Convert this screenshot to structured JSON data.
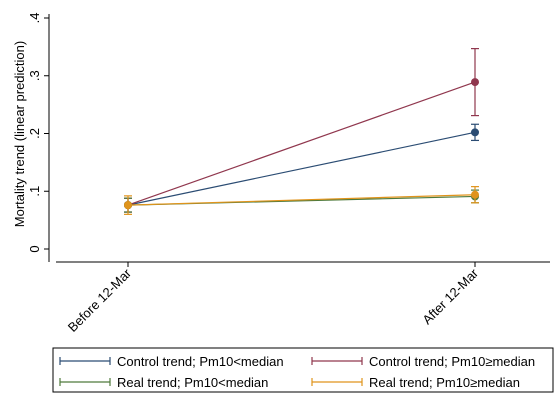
{
  "chart_data": {
    "type": "line",
    "categories": [
      "Before 12-Mar",
      "After 12-Mar"
    ],
    "ylabel": "Mortality trend (linear prediction)",
    "ylim": [
      0,
      0.4
    ],
    "yticks": [
      0,
      0.1,
      0.2,
      0.3,
      0.4
    ],
    "ytick_labels": [
      "0",
      ".1",
      ".2",
      ".3",
      ".4"
    ],
    "grid": false,
    "legend_position": "bottom",
    "series": [
      {
        "name": "Control trend; Pm10<median",
        "color": "#2b4c73",
        "values": [
          0.076,
          0.202
        ],
        "ci_low": [
          0.064,
          0.188
        ],
        "ci_high": [
          0.088,
          0.216
        ]
      },
      {
        "name": "Control trend; Pm10≥median",
        "color": "#90374e",
        "values": [
          0.076,
          0.289
        ],
        "ci_low": [
          0.064,
          0.231
        ],
        "ci_high": [
          0.088,
          0.347
        ]
      },
      {
        "name": "Real trend; Pm10<median",
        "color": "#4f7a3c",
        "values": [
          0.076,
          0.091
        ],
        "ci_low": [
          0.064,
          0.08
        ],
        "ci_high": [
          0.088,
          0.102
        ]
      },
      {
        "name": "Real trend; Pm10≥median",
        "color": "#e0941c",
        "values": [
          0.076,
          0.094
        ],
        "ci_low": [
          0.06,
          0.08
        ],
        "ci_high": [
          0.092,
          0.108
        ]
      }
    ]
  }
}
